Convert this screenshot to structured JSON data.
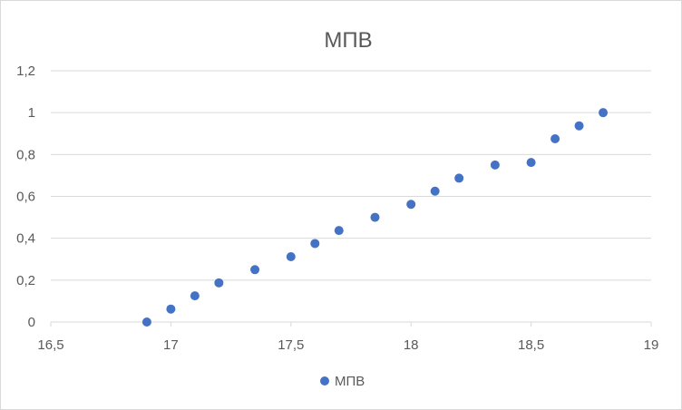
{
  "chart_data": {
    "type": "scatter",
    "title": "МПВ",
    "xlabel": "",
    "ylabel": "",
    "xlim": [
      16.5,
      19
    ],
    "ylim": [
      0,
      1.2
    ],
    "x_ticks": [
      "16,5",
      "17",
      "17,5",
      "18",
      "18,5",
      "19"
    ],
    "x_tick_values": [
      16.5,
      17,
      17.5,
      18,
      18.5,
      19
    ],
    "y_ticks": [
      "0",
      "0,2",
      "0,4",
      "0,6",
      "0,8",
      "1",
      "1,2"
    ],
    "y_tick_values": [
      0,
      0.2,
      0.4,
      0.6,
      0.8,
      1,
      1.2
    ],
    "grid": "horizontal",
    "legend_position": "bottom",
    "series": [
      {
        "name": "МПВ",
        "color": "#4472c4",
        "points": [
          [
            16.9,
            0.0
          ],
          [
            17.0,
            0.062
          ],
          [
            17.1,
            0.125
          ],
          [
            17.2,
            0.187
          ],
          [
            17.35,
            0.25
          ],
          [
            17.5,
            0.312
          ],
          [
            17.6,
            0.375
          ],
          [
            17.7,
            0.437
          ],
          [
            17.85,
            0.5
          ],
          [
            18.0,
            0.562
          ],
          [
            18.1,
            0.625
          ],
          [
            18.2,
            0.687
          ],
          [
            18.35,
            0.75
          ],
          [
            18.5,
            0.762
          ],
          [
            18.6,
            0.875
          ],
          [
            18.7,
            0.937
          ],
          [
            18.8,
            1.0
          ]
        ]
      }
    ]
  }
}
